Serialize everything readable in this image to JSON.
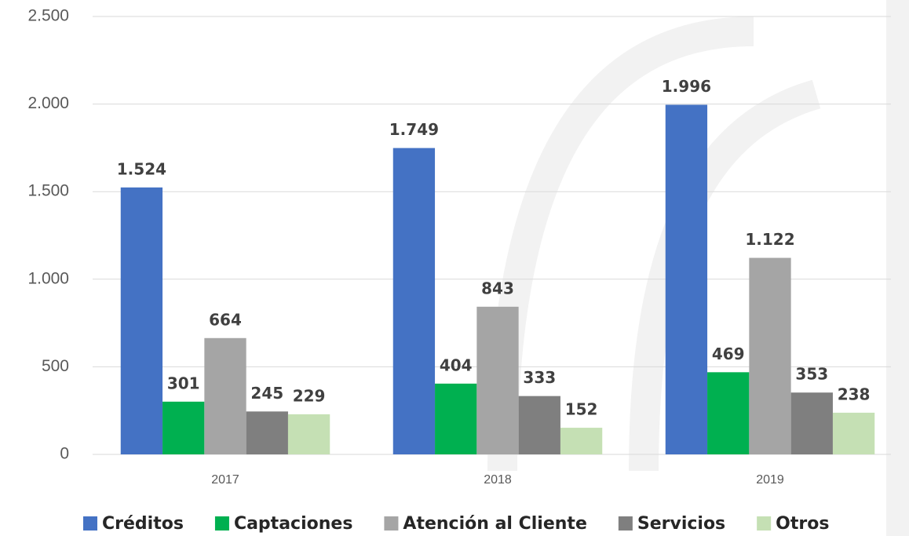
{
  "chart_data": {
    "type": "bar",
    "categories": [
      "2017",
      "2018",
      "2019"
    ],
    "series": [
      {
        "name": "Créditos",
        "color": "#4472c4",
        "values": [
          1524,
          1749,
          1996
        ],
        "value_labels": [
          "1.524",
          "1.749",
          "1.996"
        ]
      },
      {
        "name": "Captaciones",
        "color": "#00b050",
        "values": [
          301,
          404,
          469
        ]
      },
      {
        "name": "Atención al Cliente",
        "color": "#a5a5a5",
        "values": [
          664,
          843,
          1122
        ],
        "value_labels": [
          "664",
          "843",
          "1.122"
        ]
      },
      {
        "name": "Servicios",
        "color": "#7f7f7f",
        "values": [
          245,
          333,
          353
        ]
      },
      {
        "name": "Otros",
        "color": "#c5e0b4",
        "values": [
          229,
          152,
          238
        ]
      }
    ],
    "ylim": [
      0,
      2500
    ],
    "yticks": [
      0,
      500,
      {
        "value": 1000,
        "label": "1.000"
      },
      {
        "value": 1500,
        "label": "1.500"
      },
      {
        "value": 2000,
        "label": "2.000"
      },
      {
        "value": 2500,
        "label": "2.500"
      }
    ],
    "grid": true,
    "legend": "bottom"
  }
}
